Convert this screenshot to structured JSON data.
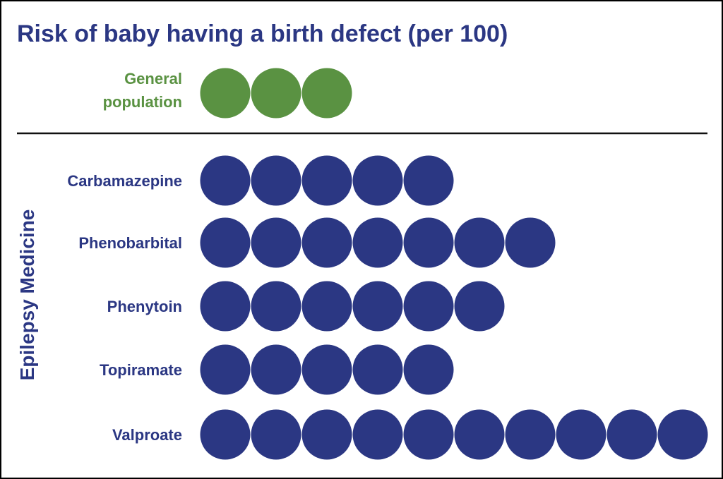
{
  "colors": {
    "general": "#5a9242",
    "medicine": "#2b3783",
    "divider": "#111111"
  },
  "chart_data": {
    "type": "pictograph",
    "title": "Risk of baby having a birth defect (per 100)",
    "group_label": "Epilepsy Medicine",
    "reference": {
      "label_lines": [
        "General",
        "population"
      ],
      "value": 3
    },
    "categories": [
      "Carbamazepine",
      "Phenobarbital",
      "Phenytoin",
      "Topiramate",
      "Valproate"
    ],
    "values": [
      5,
      7,
      6,
      5,
      10
    ]
  }
}
